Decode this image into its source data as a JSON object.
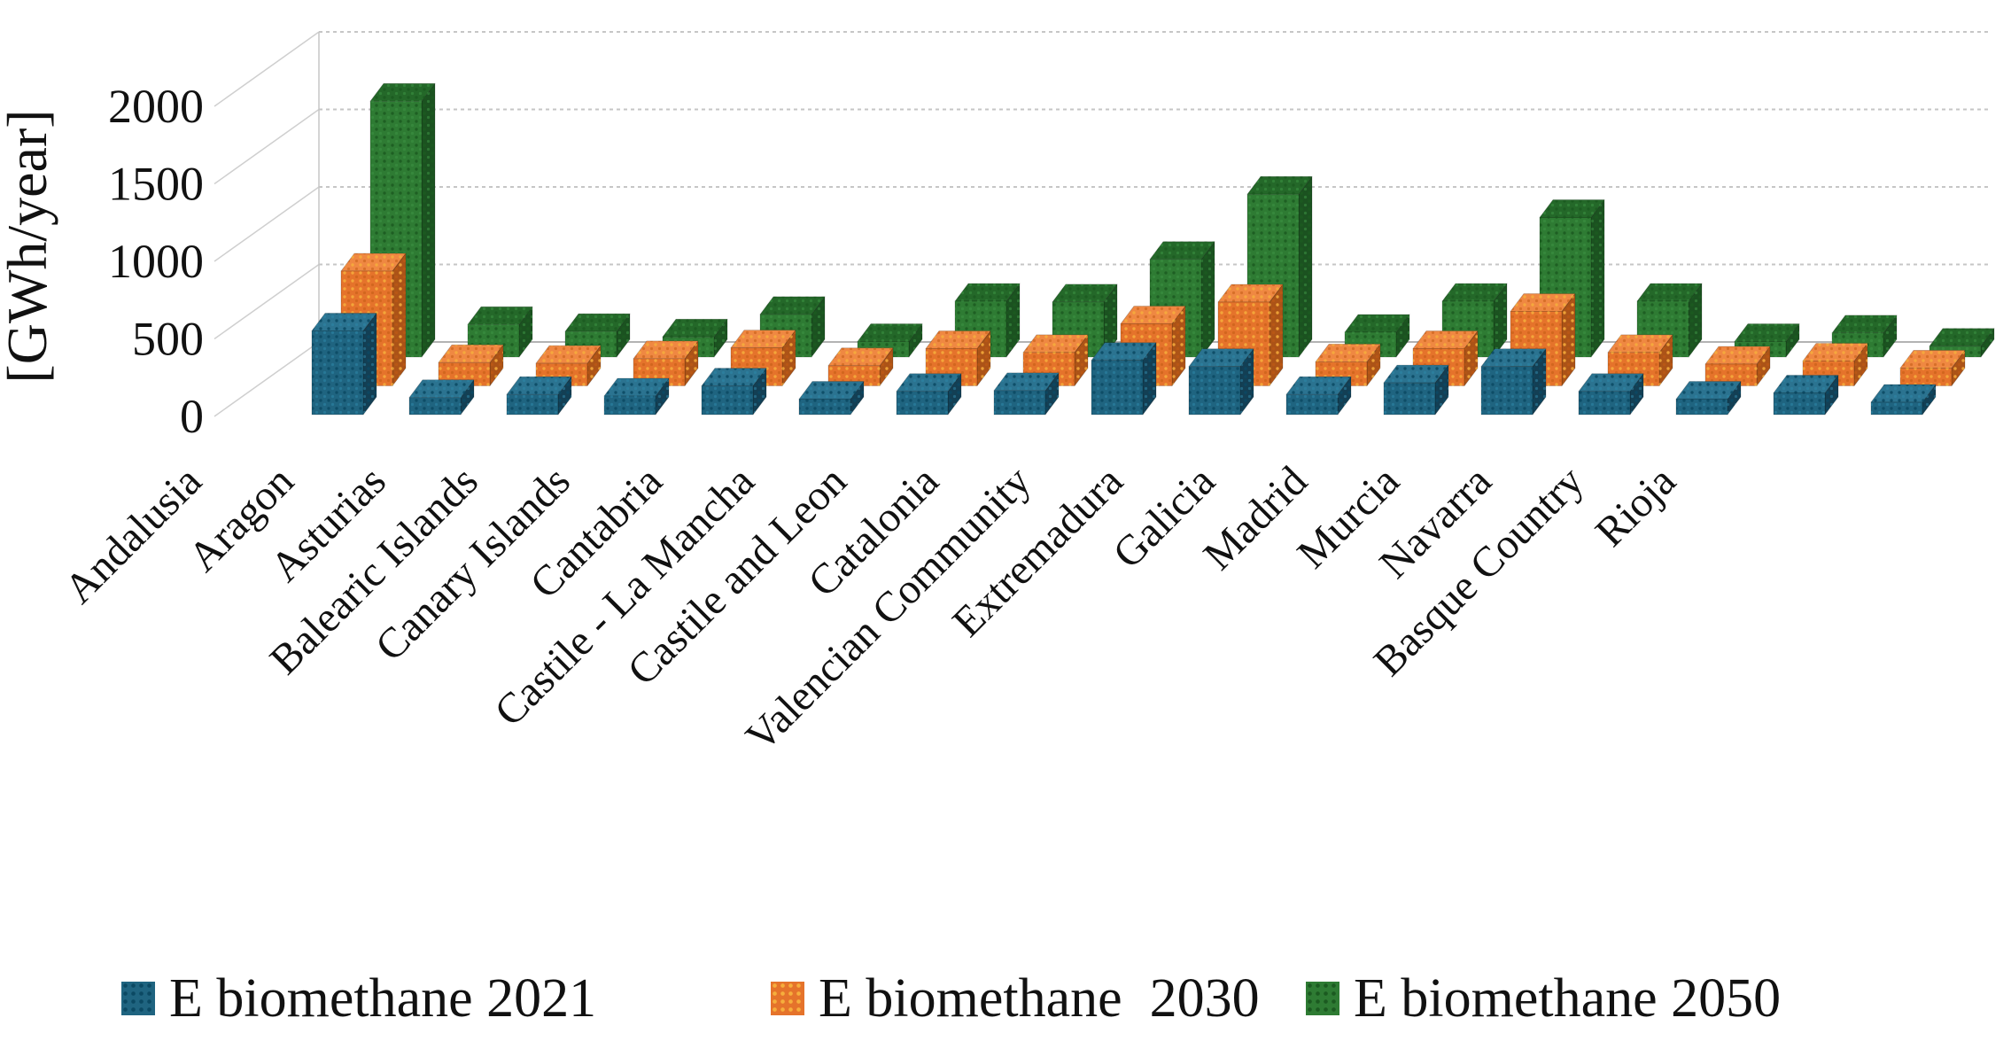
{
  "y_axis": {
    "title": "[GWh/year]",
    "ticks": [
      0,
      500,
      1000,
      1500,
      2000
    ],
    "max": 2000
  },
  "chart_data": {
    "type": "bar",
    "subtype": "3d-column",
    "title": "",
    "xlabel": "",
    "ylabel": "[GWh/year]",
    "ylim": [
      0,
      2000
    ],
    "grid": true,
    "legend_position": "bottom",
    "categories": [
      "Andalusia",
      "Aragon",
      "Asturias",
      "Balearic Islands",
      "Canary Islands",
      "Cantabria",
      "Castile - La Mancha",
      "Castile and Leon",
      "Catalonia",
      "Valencian Community",
      "Extremadura",
      "Galicia",
      "Madrid",
      "Murcia",
      "Navarra",
      "Basque Country",
      "Rioja"
    ],
    "series": [
      {
        "name": "E biomethane 2021",
        "year": "2021",
        "color": "#1F6480",
        "values": [
          540,
          110,
          130,
          120,
          185,
          100,
          150,
          155,
          350,
          310,
          130,
          205,
          310,
          150,
          100,
          140,
          80
        ]
      },
      {
        "name": "E biomethane  2030",
        "year": "2030",
        "color": "#E5732B",
        "values": [
          740,
          150,
          145,
          175,
          245,
          130,
          240,
          215,
          400,
          540,
          155,
          240,
          480,
          215,
          140,
          160,
          115
        ]
      },
      {
        "name": "E biomethane 2050",
        "year": "2050",
        "color": "#2E7B33",
        "values": [
          1650,
          210,
          165,
          130,
          275,
          100,
          360,
          355,
          630,
          1050,
          160,
          360,
          900,
          360,
          100,
          155,
          70
        ]
      }
    ]
  }
}
